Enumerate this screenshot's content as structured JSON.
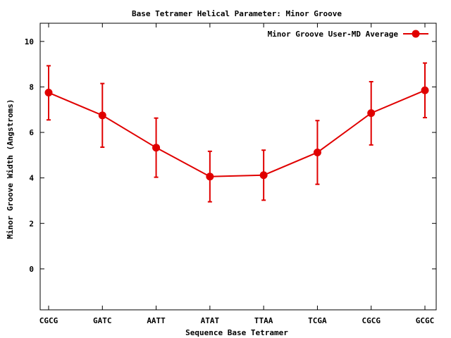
{
  "chart_data": {
    "type": "line",
    "title": "Base Tetramer Helical Parameter: Minor Groove",
    "xlabel": "Sequence Base Tetramer",
    "ylabel": "Minor Groove Width (Angstroms)",
    "categories": [
      "CGCG",
      "GATC",
      "AATT",
      "ATAT",
      "TTAA",
      "TCGA",
      "CGCG",
      "GCGC"
    ],
    "ylim": [
      -1.8,
      10.8
    ],
    "yticks": [
      "0",
      "2",
      "4",
      "6",
      "8",
      "10"
    ],
    "grid": false,
    "legend_position": "top-right",
    "series": [
      {
        "name": "Minor Groove User-MD Average",
        "color": "#e00000",
        "values": [
          7.75,
          6.75,
          5.33,
          4.06,
          4.12,
          5.12,
          6.85,
          7.85
        ],
        "err_low": [
          6.55,
          5.35,
          4.03,
          2.95,
          3.02,
          3.72,
          5.45,
          6.65
        ],
        "err_high": [
          8.93,
          8.15,
          6.63,
          5.17,
          5.22,
          6.52,
          8.23,
          9.05
        ]
      }
    ]
  }
}
